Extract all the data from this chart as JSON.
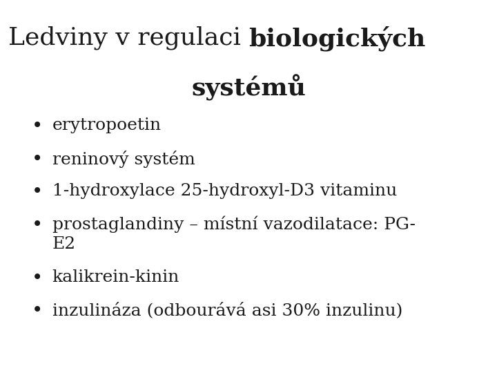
{
  "background_color": "#ffffff",
  "title_normal": "Ledviny v regulaci ",
  "title_bold1": "biologických",
  "title_bold2": "systémů",
  "bullet_items": [
    "erytropoetin",
    "reninový systém",
    "1-hydroxylace 25-hydroxyl-D3 vitaminu",
    "prostaglandiny – místní vazodilatace: PG-",
    "E2",
    "kalikrein-kinin",
    "inzulináza (odbourává asi 30% inzulinu)"
  ],
  "bullet_flags": [
    true,
    true,
    true,
    true,
    false,
    true,
    true
  ],
  "text_color": "#1a1a1a",
  "title_fontsize": 26,
  "bullet_fontsize": 18,
  "font_family": "serif"
}
